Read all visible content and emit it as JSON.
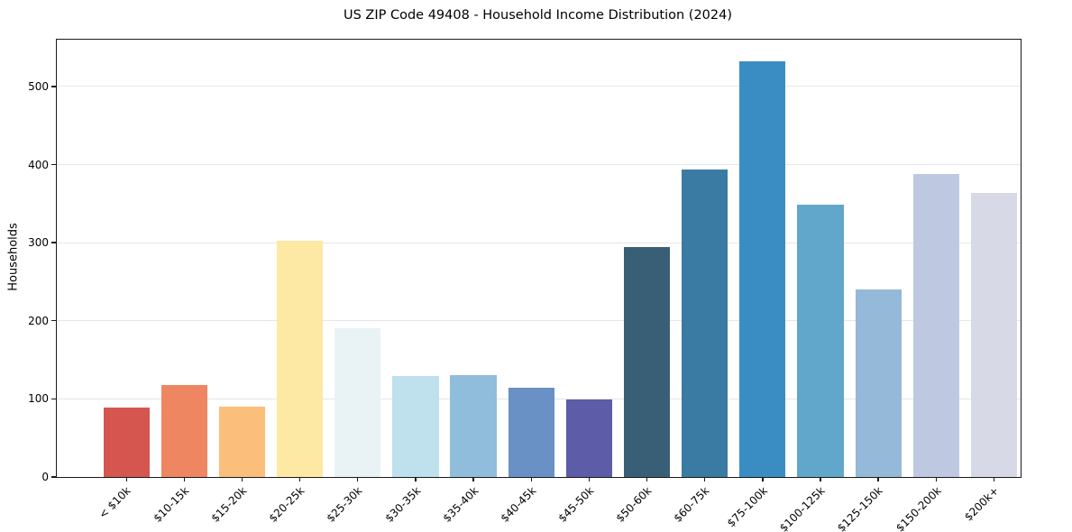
{
  "title": "US ZIP Code 49408 - Household Income Distribution (2024)",
  "chart_data": {
    "type": "bar",
    "title": "US ZIP Code 49408 - Household Income Distribution (2024)",
    "xlabel": "",
    "ylabel": "Households",
    "ylim": [
      0,
      560
    ],
    "yticks": [
      0,
      100,
      200,
      300,
      400,
      500
    ],
    "grid": "horizontal",
    "grid_color": "#e6e6e6",
    "axis_color": "#1a1a1a",
    "background_color": "#ffffff",
    "legend": "none",
    "categories": [
      "< $10k",
      "$10-15k",
      "$15-20k",
      "$20-25k",
      "$25-30k",
      "$30-35k",
      "$35-40k",
      "$40-45k",
      "$45-50k",
      "$50-60k",
      "$60-75k",
      "$75-100k",
      "$100-125k",
      "$125-150k",
      "$150-200k",
      "$200k+"
    ],
    "values": [
      89,
      118,
      90,
      302,
      191,
      129,
      130,
      114,
      99,
      295,
      394,
      532,
      349,
      240,
      388,
      364
    ],
    "bar_colors": [
      "#d4564e",
      "#ef8662",
      "#fcbe7b",
      "#fde9a3",
      "#e9f3f6",
      "#bee1ed",
      "#91bddc",
      "#6991c5",
      "#5c5ca8",
      "#385f75",
      "#3a7ba3",
      "#3a8dc2",
      "#61a6cb",
      "#95b9d8",
      "#bec9e1",
      "#d8d9e6"
    ]
  }
}
